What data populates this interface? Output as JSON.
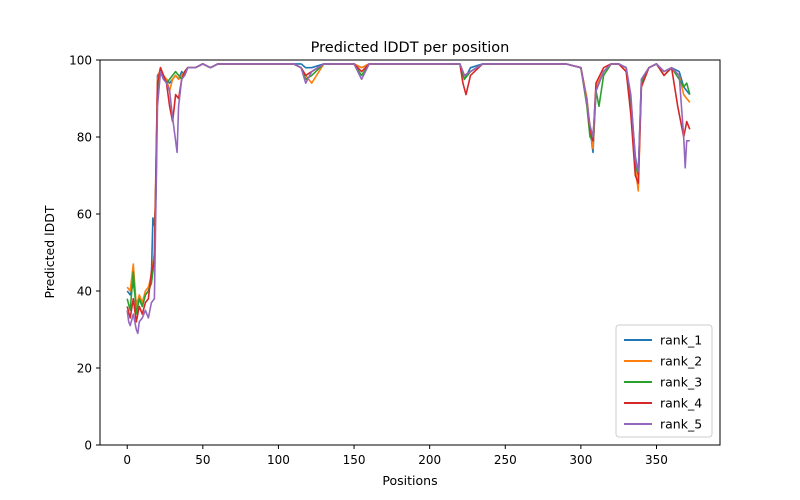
{
  "chart_data": {
    "type": "line",
    "title": "Predicted lDDT per position",
    "xlabel": "Positions",
    "ylabel": "Predicted lDDT",
    "xlim": [
      -18,
      392
    ],
    "ylim": [
      0,
      100
    ],
    "xticks": [
      0,
      50,
      100,
      150,
      200,
      250,
      300,
      350
    ],
    "yticks": [
      0,
      20,
      40,
      60,
      80,
      100
    ],
    "grid": false,
    "legend": "lower-right",
    "series": [
      {
        "name": "rank_1",
        "color": "#1f77b4",
        "x": [
          0,
          2,
          4,
          6,
          8,
          10,
          12,
          14,
          16,
          17,
          18,
          19,
          20,
          22,
          24,
          26,
          28,
          30,
          32,
          34,
          36,
          38,
          40,
          45,
          50,
          55,
          60,
          65,
          70,
          80,
          90,
          100,
          110,
          115,
          118,
          122,
          130,
          140,
          150,
          155,
          160,
          170,
          180,
          190,
          200,
          210,
          220,
          223,
          227,
          235,
          250,
          270,
          290,
          300,
          304,
          306,
          308,
          310,
          315,
          320,
          325,
          330,
          333,
          336,
          338,
          340,
          345,
          350,
          355,
          360,
          365,
          368,
          370,
          372
        ],
        "y": [
          40,
          39,
          42,
          37,
          38,
          36,
          39,
          40,
          44,
          59,
          57,
          65,
          96,
          97,
          95,
          95,
          94,
          95,
          96,
          95,
          97,
          96,
          98,
          98,
          99,
          98,
          99,
          99,
          99,
          99,
          99,
          99,
          99,
          99,
          98,
          98,
          99,
          99,
          99,
          98,
          99,
          99,
          99,
          99,
          99,
          99,
          99,
          95,
          98,
          99,
          99,
          99,
          99,
          98,
          90,
          82,
          76,
          92,
          97,
          99,
          99,
          98,
          90,
          75,
          70,
          95,
          98,
          99,
          97,
          98,
          97,
          93,
          92,
          91
        ]
      },
      {
        "name": "rank_2",
        "color": "#ff7f0e",
        "x": [
          0,
          2,
          4,
          6,
          8,
          10,
          12,
          14,
          16,
          18,
          20,
          22,
          24,
          26,
          28,
          30,
          32,
          34,
          36,
          38,
          40,
          45,
          50,
          55,
          60,
          65,
          70,
          80,
          90,
          100,
          110,
          115,
          118,
          122,
          130,
          140,
          150,
          155,
          160,
          170,
          180,
          190,
          200,
          210,
          220,
          223,
          227,
          235,
          250,
          270,
          290,
          300,
          304,
          306,
          308,
          310,
          315,
          320,
          325,
          330,
          333,
          336,
          338,
          340,
          345,
          350,
          355,
          360,
          365,
          368,
          370,
          372
        ],
        "y": [
          41,
          40,
          47,
          36,
          39,
          37,
          40,
          41,
          44,
          50,
          95,
          98,
          96,
          95,
          92,
          95,
          96,
          95,
          96,
          97,
          98,
          98,
          99,
          98,
          99,
          99,
          99,
          99,
          99,
          99,
          99,
          98,
          96,
          94,
          99,
          99,
          99,
          98,
          99,
          99,
          99,
          99,
          99,
          99,
          99,
          96,
          97,
          99,
          99,
          99,
          99,
          98,
          90,
          82,
          77,
          93,
          97,
          99,
          99,
          97,
          88,
          72,
          66,
          94,
          98,
          99,
          97,
          98,
          96,
          91,
          90,
          89
        ]
      },
      {
        "name": "rank_3",
        "color": "#2ca02c",
        "x": [
          0,
          2,
          4,
          6,
          8,
          10,
          12,
          14,
          16,
          18,
          20,
          22,
          24,
          26,
          28,
          30,
          32,
          34,
          36,
          38,
          40,
          45,
          50,
          55,
          60,
          65,
          70,
          80,
          90,
          100,
          110,
          115,
          118,
          122,
          130,
          140,
          150,
          155,
          160,
          170,
          180,
          190,
          200,
          210,
          220,
          223,
          227,
          235,
          250,
          270,
          290,
          300,
          304,
          306,
          308,
          310,
          312,
          315,
          320,
          325,
          330,
          333,
          336,
          338,
          340,
          345,
          350,
          355,
          360,
          365,
          368,
          370,
          372
        ],
        "y": [
          38,
          35,
          45,
          34,
          38,
          36,
          39,
          40,
          42,
          48,
          92,
          97,
          96,
          94,
          95,
          96,
          97,
          96,
          95,
          97,
          98,
          98,
          99,
          98,
          99,
          99,
          99,
          99,
          99,
          99,
          99,
          98,
          95,
          96,
          99,
          99,
          99,
          96,
          99,
          99,
          99,
          99,
          99,
          99,
          99,
          95,
          97,
          99,
          99,
          99,
          99,
          98,
          88,
          80,
          79,
          92,
          88,
          96,
          99,
          99,
          98,
          89,
          73,
          70,
          94,
          98,
          99,
          96,
          98,
          95,
          93,
          94,
          91
        ]
      },
      {
        "name": "rank_4",
        "color": "#d62728",
        "x": [
          0,
          2,
          4,
          6,
          8,
          10,
          12,
          14,
          16,
          18,
          20,
          22,
          24,
          26,
          28,
          30,
          32,
          34,
          36,
          38,
          40,
          45,
          50,
          55,
          60,
          65,
          70,
          80,
          90,
          100,
          110,
          115,
          118,
          122,
          130,
          140,
          150,
          155,
          160,
          170,
          180,
          190,
          200,
          210,
          220,
          222,
          224,
          227,
          235,
          250,
          270,
          290,
          300,
          304,
          306,
          308,
          310,
          315,
          320,
          325,
          330,
          333,
          336,
          338,
          340,
          345,
          350,
          355,
          360,
          364,
          366,
          368,
          370,
          372
        ],
        "y": [
          36,
          33,
          38,
          32,
          36,
          34,
          37,
          38,
          45,
          48,
          94,
          98,
          96,
          94,
          88,
          84,
          91,
          90,
          95,
          97,
          98,
          98,
          99,
          98,
          99,
          99,
          99,
          99,
          99,
          99,
          99,
          98,
          96,
          97,
          99,
          99,
          99,
          97,
          99,
          99,
          99,
          99,
          99,
          99,
          99,
          94,
          91,
          96,
          99,
          99,
          99,
          99,
          98,
          89,
          82,
          79,
          94,
          98,
          99,
          99,
          97,
          86,
          70,
          68,
          93,
          98,
          99,
          96,
          98,
          88,
          84,
          80,
          84,
          82
        ]
      },
      {
        "name": "rank_5",
        "color": "#9467bd",
        "x": [
          0,
          1,
          2,
          4,
          6,
          7,
          8,
          10,
          12,
          14,
          16,
          18,
          20,
          22,
          24,
          26,
          28,
          30,
          32,
          33,
          34,
          36,
          38,
          40,
          45,
          50,
          55,
          60,
          65,
          70,
          80,
          90,
          100,
          110,
          115,
          118,
          122,
          130,
          140,
          150,
          155,
          160,
          170,
          180,
          190,
          200,
          210,
          220,
          223,
          227,
          235,
          250,
          270,
          290,
          300,
          304,
          306,
          308,
          310,
          315,
          320,
          325,
          330,
          333,
          336,
          338,
          340,
          345,
          350,
          355,
          360,
          365,
          368,
          369,
          370,
          372
        ],
        "y": [
          35,
          32,
          31,
          34,
          30,
          29,
          32,
          33,
          35,
          33,
          37,
          38,
          88,
          97,
          95,
          94,
          92,
          85,
          79,
          76,
          88,
          95,
          96,
          98,
          98,
          99,
          98,
          99,
          99,
          99,
          99,
          99,
          99,
          99,
          98,
          94,
          97,
          99,
          99,
          99,
          95,
          99,
          99,
          99,
          99,
          99,
          99,
          99,
          96,
          97,
          99,
          99,
          99,
          99,
          98,
          89,
          83,
          80,
          92,
          97,
          99,
          99,
          98,
          91,
          74,
          71,
          95,
          98,
          99,
          97,
          98,
          96,
          80,
          72,
          79,
          79
        ]
      }
    ]
  }
}
